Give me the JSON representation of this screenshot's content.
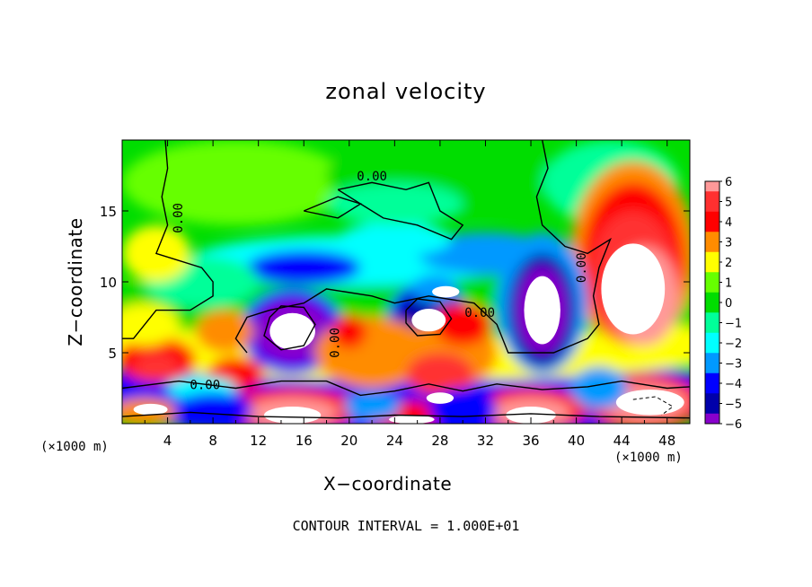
{
  "chart_data": {
    "type": "heatmap",
    "title": "zonal velocity",
    "xlabel": "X−coordinate",
    "ylabel": "Z−coordinate",
    "x_unit_label_left": "(×1000 m)",
    "x_unit_label_right": "(×1000 m)",
    "footnote": "CONTOUR INTERVAL = 1.000E+01",
    "xlim": [
      0,
      50
    ],
    "ylim": [
      0,
      20
    ],
    "x_ticks": [
      4,
      8,
      12,
      16,
      20,
      24,
      28,
      32,
      36,
      40,
      44,
      48
    ],
    "y_ticks": [
      5,
      10,
      15
    ],
    "colorbar": {
      "range": [
        -6,
        6
      ],
      "ticks": [
        "6",
        "5",
        "4",
        "3",
        "2",
        "1",
        "0",
        "−1",
        "−2",
        "−3",
        "−4",
        "−5",
        "−6"
      ],
      "colors": {
        "6": "#ff9999",
        "5": "#ff3030",
        "4": "#ff0000",
        "3": "#ff8c00",
        "2": "#ffff00",
        "1": "#66ff00",
        "0": "#00dd00",
        "-1": "#00ff99",
        "-2": "#00ffff",
        "-3": "#0099ff",
        "-4": "#0000ff",
        "-5": "#0000aa",
        "-6": "#8800cc"
      }
    },
    "contour_labels": [
      "0.00",
      "0.00",
      "0.00",
      "0.00",
      "0.00",
      "0.00"
    ],
    "features": [
      {
        "label": "upper-left background",
        "x": 8,
        "z": 16,
        "value": 0.2
      },
      {
        "label": "right upper jet",
        "x": 44,
        "z": 12,
        "value": 5.5
      },
      {
        "label": "right core (off-scale)",
        "x": 45,
        "z": 9,
        "value": 7.0
      },
      {
        "label": "negative pocket",
        "x": 37,
        "z": 8,
        "value": -6.5
      },
      {
        "label": "negative pocket",
        "x": 15,
        "z": 6.5,
        "value": -6.5
      },
      {
        "label": "negative pocket",
        "x": 27,
        "z": 7.5,
        "value": -5.5
      },
      {
        "label": "mid-level negative band",
        "x": 16,
        "z": 11,
        "value": -3.5
      },
      {
        "label": "mid-level negative band",
        "x": 24,
        "z": 13,
        "value": -2.5
      },
      {
        "label": "mid-level negative band",
        "x": 33,
        "z": 12,
        "value": -3.0
      },
      {
        "label": "lower positive band",
        "x": 22,
        "z": 4.5,
        "value": 2.5
      },
      {
        "label": "lower positive band",
        "x": 28,
        "z": 3.5,
        "value": 4.5
      },
      {
        "label": "lower positive band",
        "x": 3,
        "z": 4.5,
        "value": 4.0
      },
      {
        "label": "surface positive",
        "x": 15,
        "z": 1.0,
        "value": 6.0
      },
      {
        "label": "surface positive",
        "x": 36,
        "z": 1.0,
        "value": 5.5
      },
      {
        "label": "surface positive",
        "x": 46,
        "z": 1.5,
        "value": 6.0
      },
      {
        "label": "surface negative",
        "x": 8,
        "z": 1.0,
        "value": -4.0
      },
      {
        "label": "surface negative",
        "x": 30,
        "z": 1.0,
        "value": -4.5
      },
      {
        "label": "surface negative",
        "x": 42,
        "z": 2.5,
        "value": -3.5
      }
    ]
  }
}
